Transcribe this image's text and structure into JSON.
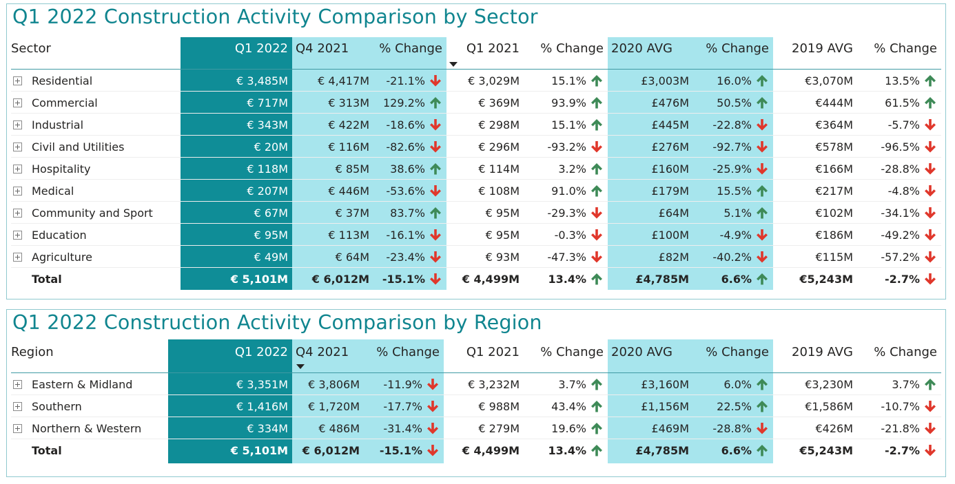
{
  "colors": {
    "title": "#10858f",
    "band_dark": "#0f8d97",
    "band_light": "#a7e5ed",
    "up_arrow": "#3e8a57",
    "down_arrow": "#e0372b"
  },
  "icons": {
    "up": "arrow-up-icon",
    "down": "arrow-down-icon",
    "expand": "expand-plus-icon",
    "sort": "sort-descending-icon"
  },
  "sector_table": {
    "title": "Q1 2022 Construction Activity Comparison by Sector",
    "headers": [
      "Sector",
      "Q1 2022",
      "Q4 2021",
      "% Change",
      "Q1 2021",
      "% Change",
      "2020 AVG",
      "% Change",
      "2019 AVG",
      "% Change"
    ],
    "sorted_column": "Q1 2021",
    "rows": [
      {
        "name": "Residential",
        "q1_2022": "€ 3,485M",
        "q4_2021": "€ 4,417M",
        "chg_q4": "-21.1%",
        "dir_q4": "down",
        "q1_2021": "€ 3,029M",
        "chg_q1": "15.1%",
        "dir_q1": "up",
        "avg2020": "£3,003M",
        "chg_2020": "16.0%",
        "dir_2020": "up",
        "avg2019": "€3,070M",
        "chg_2019": "13.5%",
        "dir_2019": "up"
      },
      {
        "name": "Commercial",
        "q1_2022": "€ 717M",
        "q4_2021": "€ 313M",
        "chg_q4": "129.2%",
        "dir_q4": "up",
        "q1_2021": "€ 369M",
        "chg_q1": "93.9%",
        "dir_q1": "up",
        "avg2020": "£476M",
        "chg_2020": "50.5%",
        "dir_2020": "up",
        "avg2019": "€444M",
        "chg_2019": "61.5%",
        "dir_2019": "up"
      },
      {
        "name": "Industrial",
        "q1_2022": "€ 343M",
        "q4_2021": "€ 422M",
        "chg_q4": "-18.6%",
        "dir_q4": "down",
        "q1_2021": "€ 298M",
        "chg_q1": "15.1%",
        "dir_q1": "up",
        "avg2020": "£445M",
        "chg_2020": "-22.8%",
        "dir_2020": "down",
        "avg2019": "€364M",
        "chg_2019": "-5.7%",
        "dir_2019": "down"
      },
      {
        "name": "Civil and Utilities",
        "q1_2022": "€ 20M",
        "q4_2021": "€ 116M",
        "chg_q4": "-82.6%",
        "dir_q4": "down",
        "q1_2021": "€ 296M",
        "chg_q1": "-93.2%",
        "dir_q1": "down",
        "avg2020": "£276M",
        "chg_2020": "-92.7%",
        "dir_2020": "down",
        "avg2019": "€578M",
        "chg_2019": "-96.5%",
        "dir_2019": "down"
      },
      {
        "name": "Hospitality",
        "q1_2022": "€ 118M",
        "q4_2021": "€ 85M",
        "chg_q4": "38.6%",
        "dir_q4": "up",
        "q1_2021": "€ 114M",
        "chg_q1": "3.2%",
        "dir_q1": "up",
        "avg2020": "£160M",
        "chg_2020": "-25.9%",
        "dir_2020": "down",
        "avg2019": "€166M",
        "chg_2019": "-28.8%",
        "dir_2019": "down"
      },
      {
        "name": "Medical",
        "q1_2022": "€ 207M",
        "q4_2021": "€ 446M",
        "chg_q4": "-53.6%",
        "dir_q4": "down",
        "q1_2021": "€ 108M",
        "chg_q1": "91.0%",
        "dir_q1": "up",
        "avg2020": "£179M",
        "chg_2020": "15.5%",
        "dir_2020": "up",
        "avg2019": "€217M",
        "chg_2019": "-4.8%",
        "dir_2019": "down"
      },
      {
        "name": "Community and Sport",
        "q1_2022": "€ 67M",
        "q4_2021": "€ 37M",
        "chg_q4": "83.7%",
        "dir_q4": "up",
        "q1_2021": "€ 95M",
        "chg_q1": "-29.3%",
        "dir_q1": "down",
        "avg2020": "£64M",
        "chg_2020": "5.1%",
        "dir_2020": "up",
        "avg2019": "€102M",
        "chg_2019": "-34.1%",
        "dir_2019": "down"
      },
      {
        "name": "Education",
        "q1_2022": "€ 95M",
        "q4_2021": "€ 113M",
        "chg_q4": "-16.1%",
        "dir_q4": "down",
        "q1_2021": "€ 95M",
        "chg_q1": "-0.3%",
        "dir_q1": "down",
        "avg2020": "£100M",
        "chg_2020": "-4.9%",
        "dir_2020": "down",
        "avg2019": "€186M",
        "chg_2019": "-49.2%",
        "dir_2019": "down"
      },
      {
        "name": "Agriculture",
        "q1_2022": "€ 49M",
        "q4_2021": "€ 64M",
        "chg_q4": "-23.4%",
        "dir_q4": "down",
        "q1_2021": "€ 93M",
        "chg_q1": "-47.3%",
        "dir_q1": "down",
        "avg2020": "£82M",
        "chg_2020": "-40.2%",
        "dir_2020": "down",
        "avg2019": "€115M",
        "chg_2019": "-57.2%",
        "dir_2019": "down"
      }
    ],
    "total": {
      "name": "Total",
      "q1_2022": "€ 5,101M",
      "q4_2021": "€ 6,012M",
      "chg_q4": "-15.1%",
      "dir_q4": "down",
      "q1_2021": "€ 4,499M",
      "chg_q1": "13.4%",
      "dir_q1": "up",
      "avg2020": "£4,785M",
      "chg_2020": "6.6%",
      "dir_2020": "up",
      "avg2019": "€5,243M",
      "chg_2019": "-2.7%",
      "dir_2019": "down"
    }
  },
  "region_table": {
    "title": "Q1 2022 Construction Activity Comparison by Region",
    "headers": [
      "Region",
      "Q1 2022",
      "Q4 2021",
      "% Change",
      "Q1 2021",
      "% Change",
      "2020 AVG",
      "% Change",
      "2019 AVG",
      "% Change"
    ],
    "sorted_column": "Q4 2021",
    "rows": [
      {
        "name": "Eastern & Midland",
        "q1_2022": "€ 3,351M",
        "q4_2021": "€ 3,806M",
        "chg_q4": "-11.9%",
        "dir_q4": "down",
        "q1_2021": "€ 3,232M",
        "chg_q1": "3.7%",
        "dir_q1": "up",
        "avg2020": "£3,160M",
        "chg_2020": "6.0%",
        "dir_2020": "up",
        "avg2019": "€3,230M",
        "chg_2019": "3.7%",
        "dir_2019": "up"
      },
      {
        "name": "Southern",
        "q1_2022": "€ 1,416M",
        "q4_2021": "€ 1,720M",
        "chg_q4": "-17.7%",
        "dir_q4": "down",
        "q1_2021": "€ 988M",
        "chg_q1": "43.4%",
        "dir_q1": "up",
        "avg2020": "£1,156M",
        "chg_2020": "22.5%",
        "dir_2020": "up",
        "avg2019": "€1,586M",
        "chg_2019": "-10.7%",
        "dir_2019": "down"
      },
      {
        "name": "Northern & Western",
        "q1_2022": "€ 334M",
        "q4_2021": "€ 486M",
        "chg_q4": "-31.4%",
        "dir_q4": "down",
        "q1_2021": "€ 279M",
        "chg_q1": "19.6%",
        "dir_q1": "up",
        "avg2020": "£469M",
        "chg_2020": "-28.8%",
        "dir_2020": "down",
        "avg2019": "€426M",
        "chg_2019": "-21.8%",
        "dir_2019": "down"
      }
    ],
    "total": {
      "name": "Total",
      "q1_2022": "€ 5,101M",
      "q4_2021": "€ 6,012M",
      "chg_q4": "-15.1%",
      "dir_q4": "down",
      "q1_2021": "€ 4,499M",
      "chg_q1": "13.4%",
      "dir_q1": "up",
      "avg2020": "£4,785M",
      "chg_2020": "6.6%",
      "dir_2020": "up",
      "avg2019": "€5,243M",
      "chg_2019": "-2.7%",
      "dir_2019": "down"
    }
  }
}
